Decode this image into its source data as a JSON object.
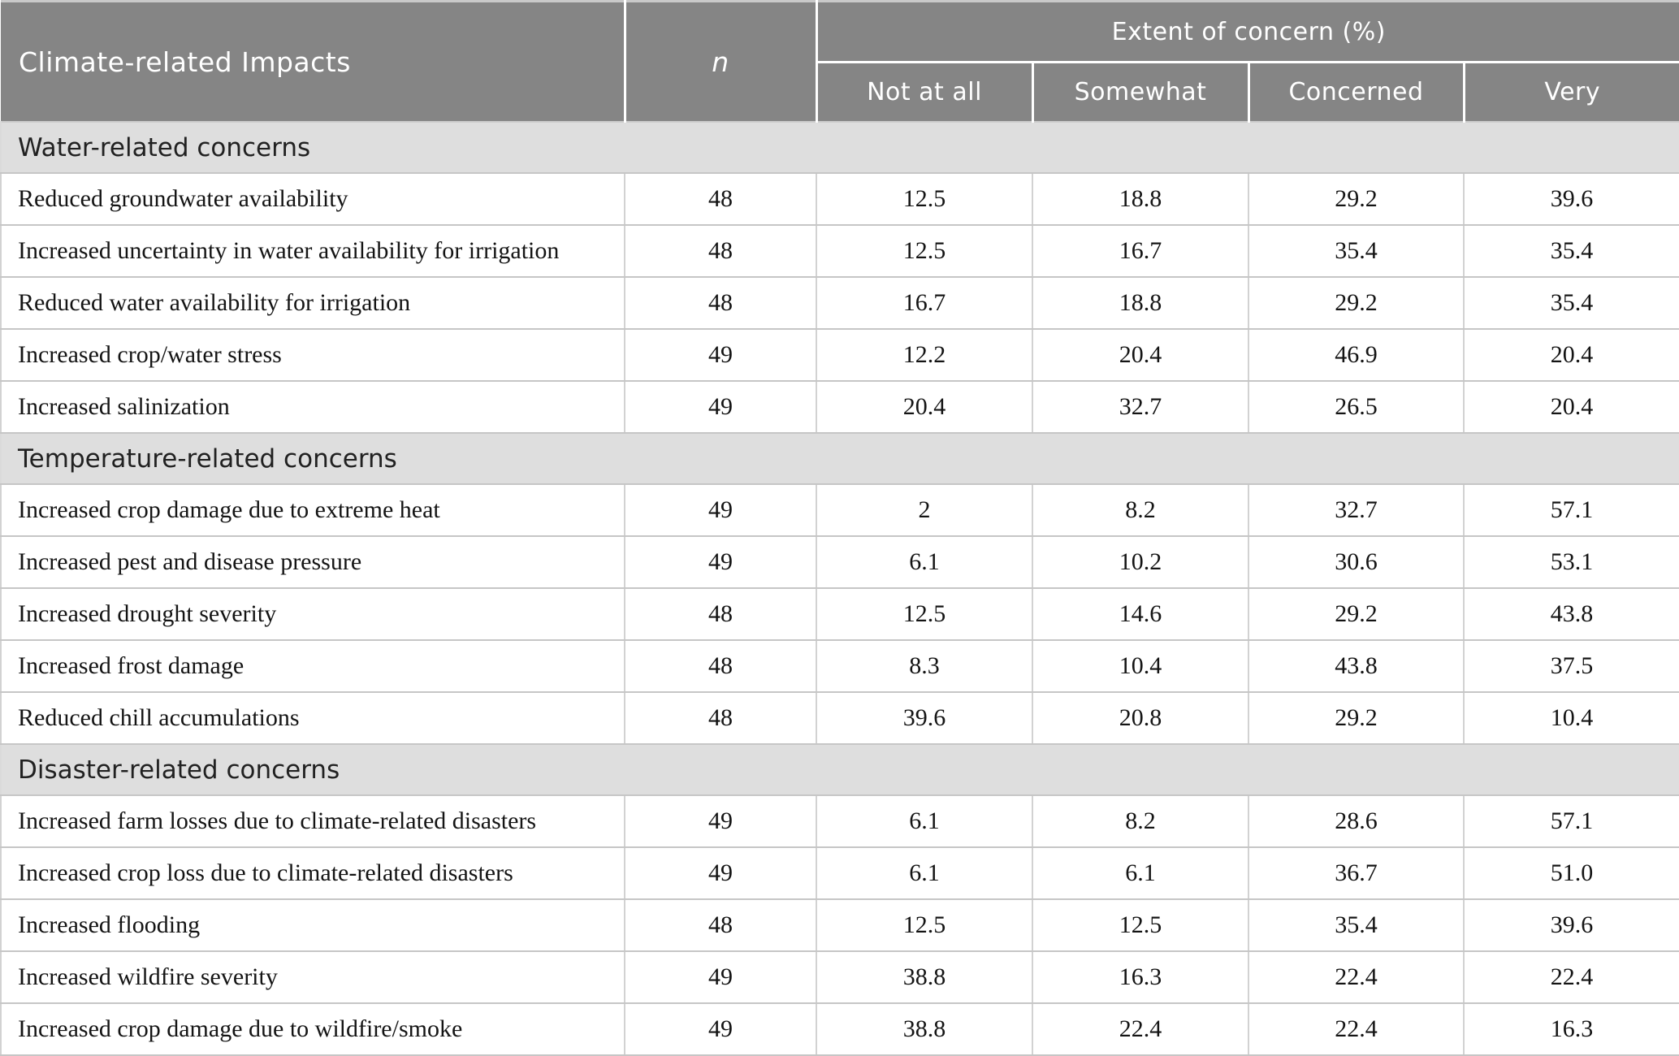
{
  "table": {
    "header": {
      "impacts_label": "Climate-related Impacts",
      "n_label": "n",
      "extent_group_label": "Extent of concern (%)",
      "subcolumns": [
        "Not at all",
        "Somewhat",
        "Concerned",
        "Very"
      ]
    },
    "sections": [
      {
        "title": "Water-related concerns",
        "rows": [
          {
            "label": "Reduced groundwater availability",
            "n": "48",
            "not_at_all": "12.5",
            "somewhat": "18.8",
            "concerned": "29.2",
            "very": "39.6"
          },
          {
            "label": "Increased uncertainty in water availability for irrigation",
            "n": "48",
            "not_at_all": "12.5",
            "somewhat": "16.7",
            "concerned": "35.4",
            "very": "35.4"
          },
          {
            "label": "Reduced water availability for irrigation",
            "n": "48",
            "not_at_all": "16.7",
            "somewhat": "18.8",
            "concerned": "29.2",
            "very": "35.4"
          },
          {
            "label": "Increased crop/water stress",
            "n": "49",
            "not_at_all": "12.2",
            "somewhat": "20.4",
            "concerned": "46.9",
            "very": "20.4"
          },
          {
            "label": "Increased salinization",
            "n": "49",
            "not_at_all": "20.4",
            "somewhat": "32.7",
            "concerned": "26.5",
            "very": "20.4"
          }
        ]
      },
      {
        "title": "Temperature-related concerns",
        "rows": [
          {
            "label": "Increased crop damage due to extreme heat",
            "n": "49",
            "not_at_all": "2",
            "somewhat": "8.2",
            "concerned": "32.7",
            "very": "57.1"
          },
          {
            "label": "Increased pest and disease pressure",
            "n": "49",
            "not_at_all": "6.1",
            "somewhat": "10.2",
            "concerned": "30.6",
            "very": "53.1"
          },
          {
            "label": "Increased drought severity",
            "n": "48",
            "not_at_all": "12.5",
            "somewhat": "14.6",
            "concerned": "29.2",
            "very": "43.8"
          },
          {
            "label": "Increased frost damage",
            "n": "48",
            "not_at_all": "8.3",
            "somewhat": "10.4",
            "concerned": "43.8",
            "very": "37.5"
          },
          {
            "label": "Reduced chill accumulations",
            "n": "48",
            "not_at_all": "39.6",
            "somewhat": "20.8",
            "concerned": "29.2",
            "very": "10.4"
          }
        ]
      },
      {
        "title": "Disaster-related concerns",
        "rows": [
          {
            "label": "Increased farm losses due to climate-related disasters",
            "n": "49",
            "not_at_all": "6.1",
            "somewhat": "8.2",
            "concerned": "28.6",
            "very": "57.1"
          },
          {
            "label": "Increased crop loss due to climate-related disasters",
            "n": "49",
            "not_at_all": "6.1",
            "somewhat": "6.1",
            "concerned": "36.7",
            "very": "51.0"
          },
          {
            "label": "Increased flooding",
            "n": "48",
            "not_at_all": "12.5",
            "somewhat": "12.5",
            "concerned": "35.4",
            "very": "39.6"
          },
          {
            "label": "Increased wildfire severity",
            "n": "49",
            "not_at_all": "38.8",
            "somewhat": "16.3",
            "concerned": "22.4",
            "very": "22.4"
          },
          {
            "label": "Increased crop damage due to wildfire/smoke",
            "n": "49",
            "not_at_all": "38.8",
            "somewhat": "22.4",
            "concerned": "22.4",
            "very": "16.3"
          }
        ]
      }
    ]
  },
  "colors": {
    "header_bg": "#858585",
    "header_text": "#ffffff",
    "section_band_bg": "#dedede",
    "row_border": "#c6c6c6",
    "column_border": "#d2d2d2",
    "body_text": "#141414"
  }
}
